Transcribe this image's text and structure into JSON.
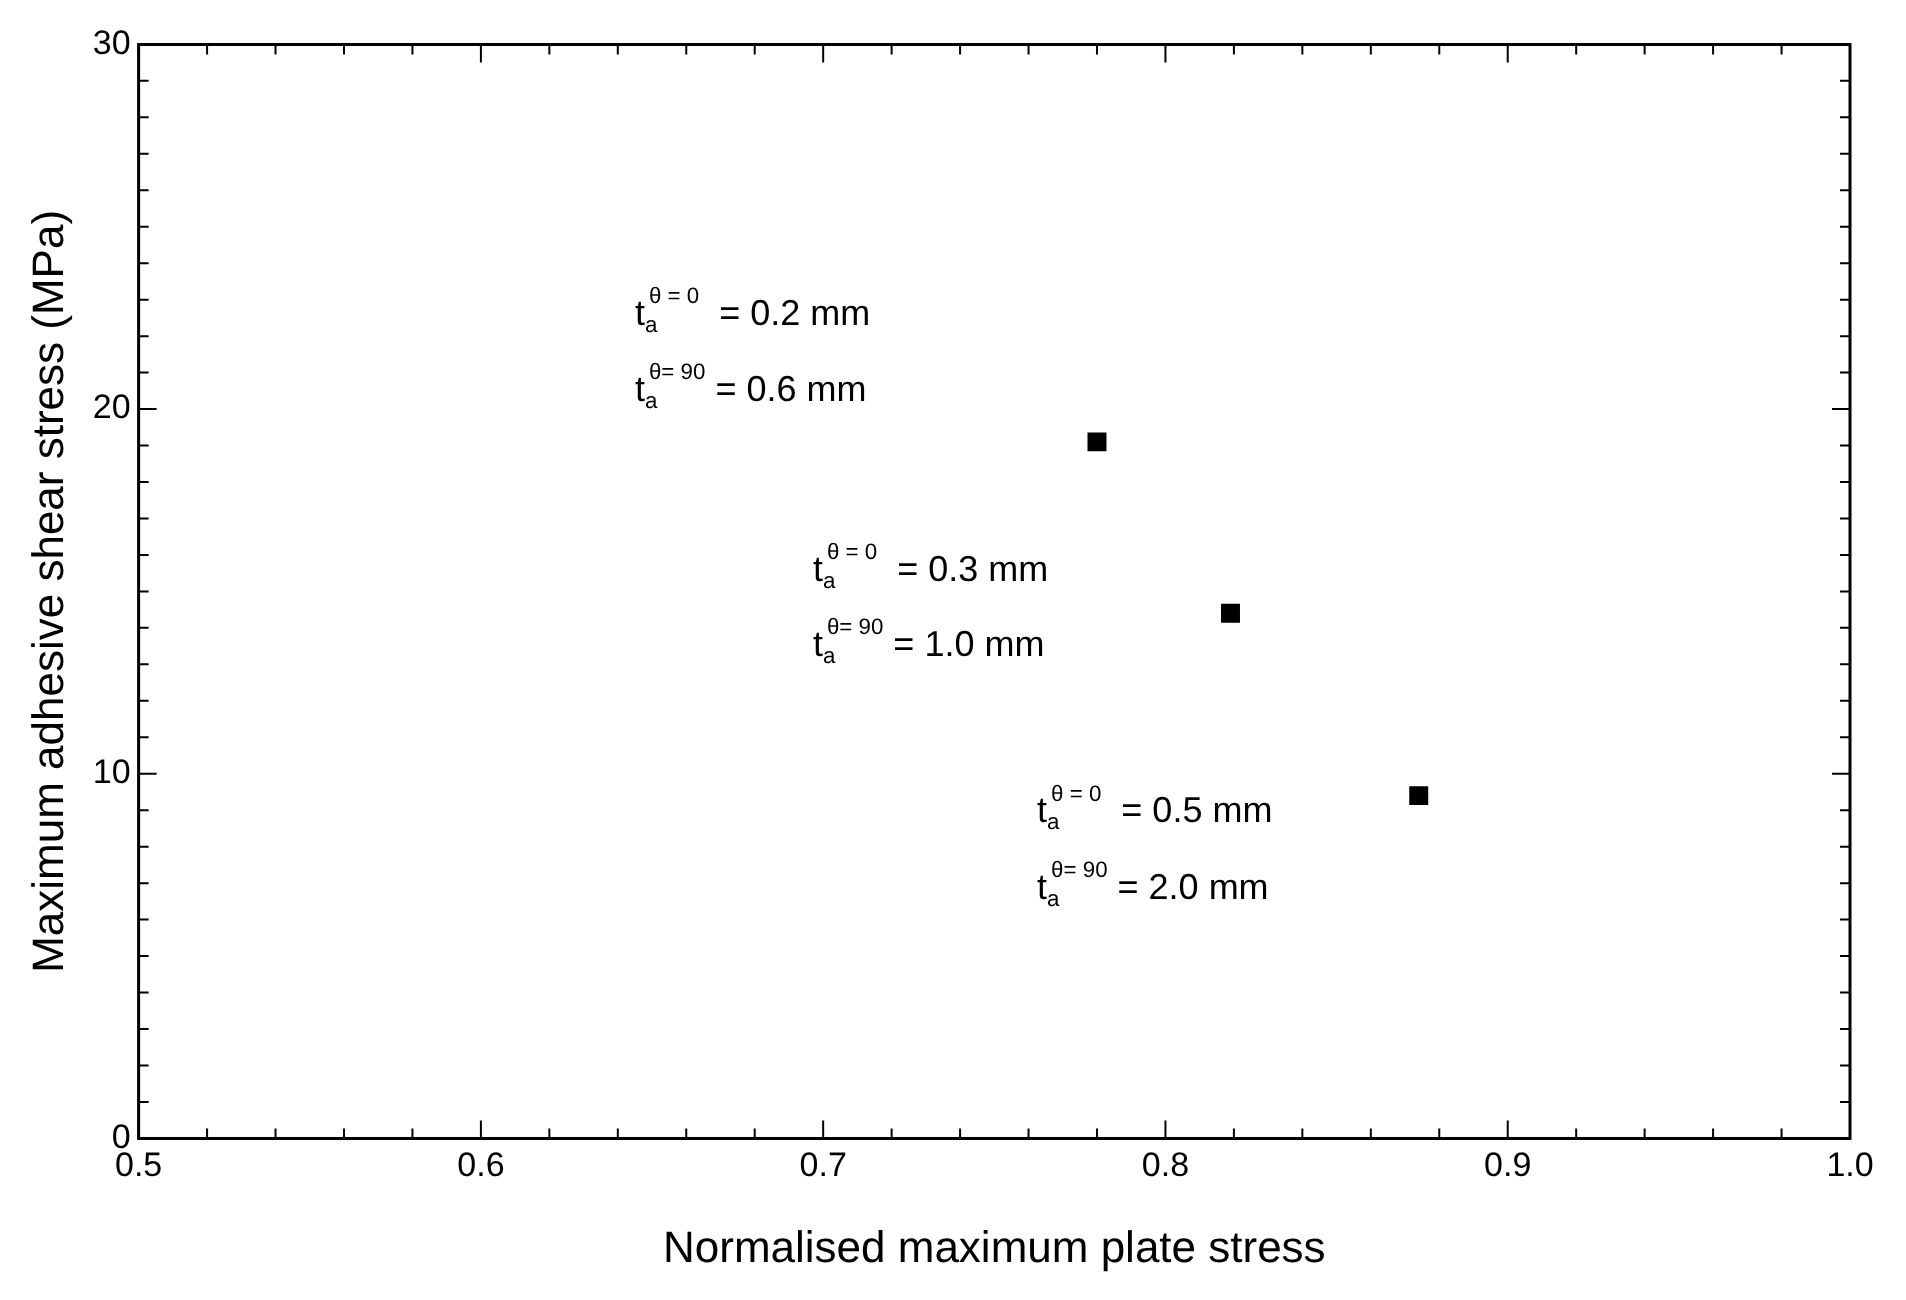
{
  "chart_data": {
    "type": "scatter",
    "xlabel": "Normalised maximum plate stress",
    "ylabel": "Maximum adhesive shear stress (MPa)",
    "x": [
      0.78,
      0.819,
      0.874
    ],
    "series": [
      {
        "color": "#000000",
        "values": [
          19.1,
          14.4,
          9.4
        ]
      }
    ],
    "xlim": [
      0.5,
      1.0
    ],
    "xticks": [
      0.5,
      0.6,
      0.7,
      0.8,
      0.9,
      {
        "value": 1.0,
        "label": "1.0"
      }
    ],
    "ylim": [
      0,
      30
    ],
    "yticks": [
      0,
      10,
      20,
      30
    ],
    "grid": false,
    "legend": false,
    "marker": "square",
    "annotations": [
      "t$_{a}$$^{θ = 0}$  = 0.2 mm",
      "t$_{a}$$^{θ= 90}$ = 0.6 mm",
      "t$_{a}$$^{θ = 0}$  = 0.3 mm",
      "t$_{a}$$^{θ= 90}$ = 1.0 mm",
      "t$_{a}$$^{θ = 0}$  = 0.5 mm",
      "t$_{a}$$^{θ= 90}$ = 2.0 mm"
    ]
  }
}
